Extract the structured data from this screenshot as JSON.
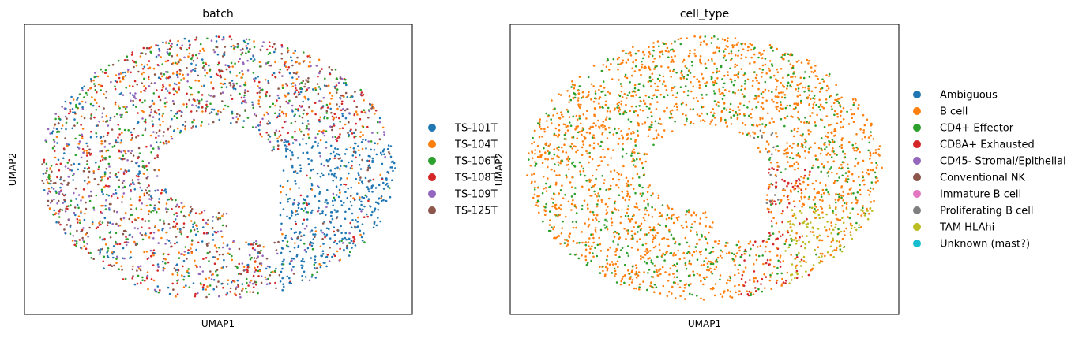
{
  "chart_data": [
    {
      "type": "scatter",
      "title": "batch",
      "xlabel": "UMAP1",
      "ylabel": "UMAP2",
      "grid": false,
      "ticks": false,
      "legend_placement": "right",
      "categories": [
        {
          "label": "TS-101T",
          "color": "#1f77b4"
        },
        {
          "label": "TS-104T",
          "color": "#ff7f0e"
        },
        {
          "label": "TS-106T",
          "color": "#2ca02c"
        },
        {
          "label": "TS-108T",
          "color": "#d62728"
        },
        {
          "label": "TS-109T",
          "color": "#9467bd"
        },
        {
          "label": "TS-125T",
          "color": "#8c564b"
        }
      ]
    },
    {
      "type": "scatter",
      "title": "cell_type",
      "xlabel": "UMAP1",
      "ylabel": "UMAP2",
      "grid": false,
      "ticks": false,
      "legend_placement": "right",
      "categories": [
        {
          "label": "Ambiguous",
          "color": "#1f77b4"
        },
        {
          "label": "B cell",
          "color": "#ff7f0e"
        },
        {
          "label": "CD4+ Effector",
          "color": "#2ca02c"
        },
        {
          "label": "CD8A+ Exhausted",
          "color": "#d62728"
        },
        {
          "label": "CD45- Stromal/Epithelial",
          "color": "#9467bd"
        },
        {
          "label": "Conventional NK",
          "color": "#8c564b"
        },
        {
          "label": "Immature B cell",
          "color": "#e377c2"
        },
        {
          "label": "Proliferating B cell",
          "color": "#7f7f7f"
        },
        {
          "label": "TAM HLAhi",
          "color": "#bcbd22"
        },
        {
          "label": "Unknown (mast?)",
          "color": "#17becf"
        }
      ]
    }
  ]
}
